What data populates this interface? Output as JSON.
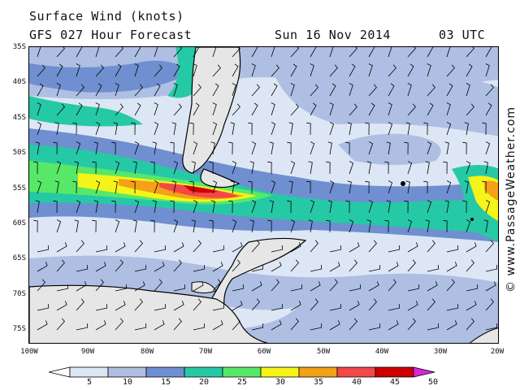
{
  "header": {
    "title": "Surface Wind (knots)",
    "subtitle": "GFS 027 Hour Forecast",
    "date": "Sun 16 Nov 2014",
    "time": "03 UTC"
  },
  "map": {
    "lat_labels": [
      "35S",
      "40S",
      "45S",
      "50S",
      "55S",
      "60S",
      "65S",
      "70S",
      "75S"
    ],
    "lon_labels": [
      "100W",
      "90W",
      "80W",
      "70W",
      "60W",
      "50W",
      "40W",
      "30W",
      "20W"
    ],
    "colors": {
      "land": "#e6e6e6",
      "coast": "#000000",
      "barb": "#000000"
    }
  },
  "colorbar": {
    "labels": [
      "5",
      "10",
      "15",
      "20",
      "25",
      "30",
      "35",
      "40",
      "45",
      "50"
    ],
    "colors": [
      "#ffffff",
      "#dde6f4",
      "#aebfe3",
      "#6f8fd0",
      "#26c9a5",
      "#58e868",
      "#f4f418",
      "#f4a018",
      "#f24848",
      "#cc0000",
      "#d828d8"
    ]
  },
  "watermark": "© www.PassageWeather.com"
}
